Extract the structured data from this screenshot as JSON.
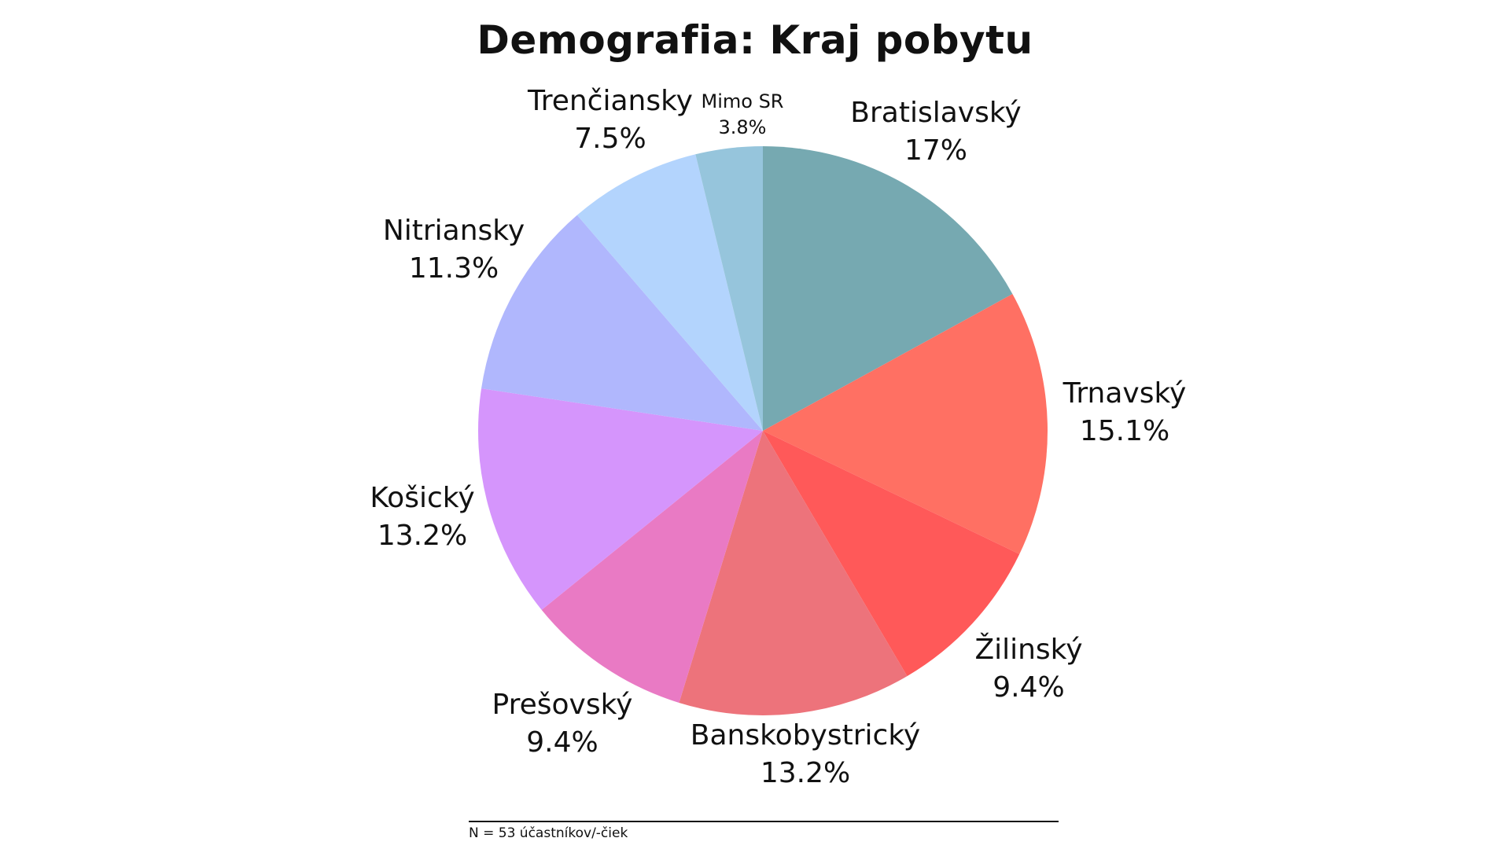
{
  "chart_data": {
    "type": "pie",
    "title": "Demografia: Kraj pobytu",
    "slices": [
      {
        "label": "Bratislavský",
        "value": 17,
        "value_label": "17%",
        "color": "#76A9B1"
      },
      {
        "label": "Trnavský",
        "value": 15.1,
        "value_label": "15.1%",
        "color": "#FF7063"
      },
      {
        "label": "Žilinský",
        "value": 9.4,
        "value_label": "9.4%",
        "color": "#FF5959"
      },
      {
        "label": "Banskobystrický",
        "value": 13.2,
        "value_label": "13.2%",
        "color": "#ED737B"
      },
      {
        "label": "Prešovský",
        "value": 9.4,
        "value_label": "9.4%",
        "color": "#E97AC4"
      },
      {
        "label": "Košický",
        "value": 13.2,
        "value_label": "13.2%",
        "color": "#D595FC"
      },
      {
        "label": "Nitriansky",
        "value": 11.3,
        "value_label": "11.3%",
        "color": "#B0B7FD"
      },
      {
        "label": "Trenčiansky",
        "value": 7.5,
        "value_label": "7.5%",
        "color": "#B3D4FD"
      },
      {
        "label": "Mimo SR",
        "value": 3.8,
        "value_label": "3.8%",
        "color": "#96C5DC"
      }
    ],
    "legend": "none",
    "start": "top",
    "direction": "clockwise"
  },
  "footnote": "N = 53 účastníkov/-čiek"
}
